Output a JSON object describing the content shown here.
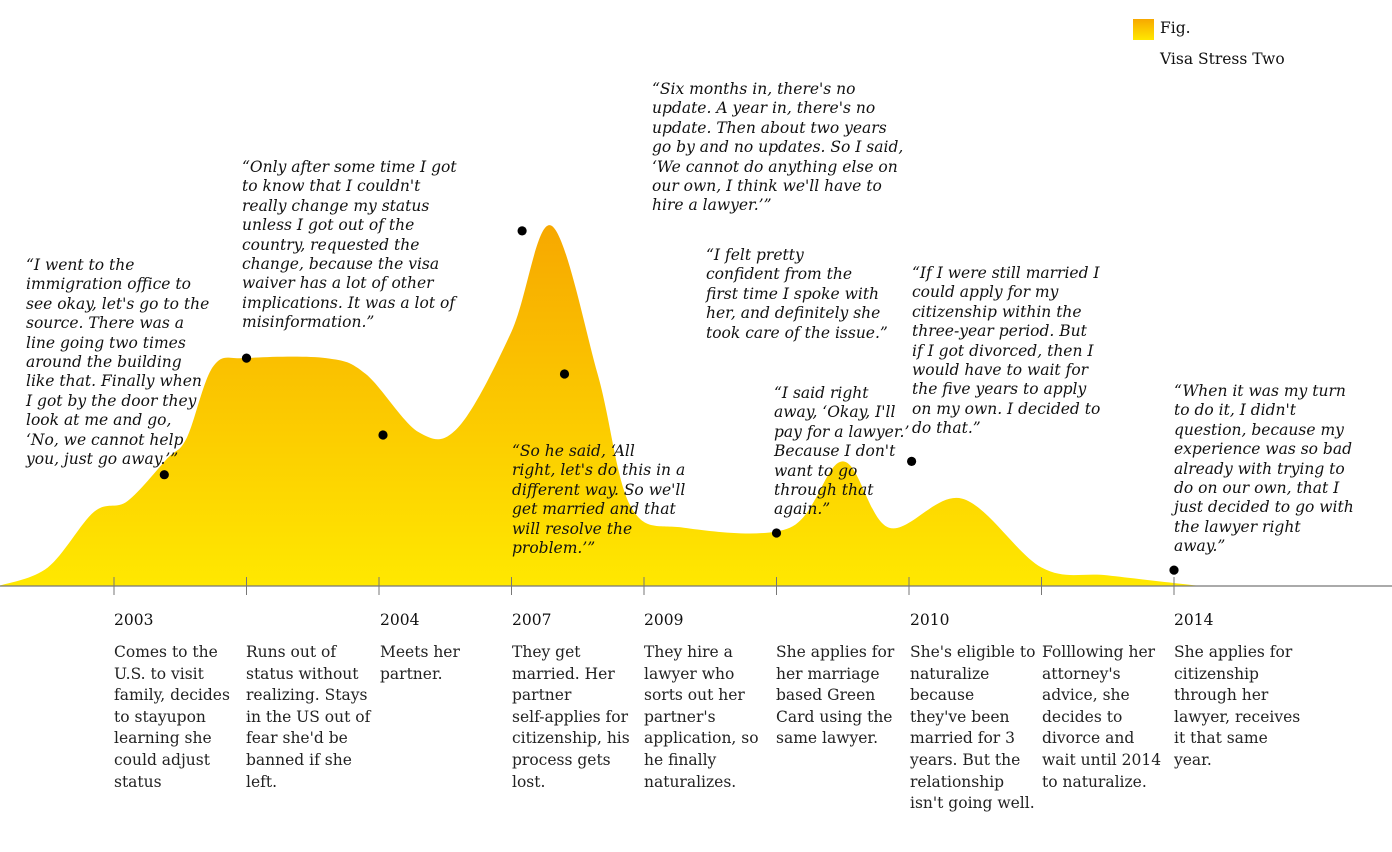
{
  "legend": {
    "fig_label": "Fig.",
    "title": "Visa Stress Two"
  },
  "colors": {
    "fill_top": "#f7a800",
    "fill_bottom": "#ffe800",
    "axis": "#777777",
    "point": "#000000"
  },
  "chart_data": {
    "type": "area",
    "title": "Visa Stress Two",
    "xlabel": "",
    "ylabel": "",
    "grid": false,
    "legend_placement": "top-right",
    "categories": [
      "2003",
      "",
      "2004",
      "2007",
      "2009",
      "",
      "2010",
      "",
      "2014"
    ],
    "descriptions": [
      "Comes to the\nU.S. to visit\nfamily, decides\nto stayupon\nlearning she\ncould adjust\nstatus",
      "Runs out of\nstatus without\nrealizing. Stays\nin the US out of\nfear she'd be\nbanned if she\nleft.",
      "Meets her\npartner.",
      "They get\nmarried. Her\npartner\nself-applies for\ncitizenship, his\nprocess gets\nlost.",
      "They hire a\nlawyer who\nsorts out her\npartner's\napplication, so\nhe finally\nnaturalizes.",
      "She applies for\nher marriage\nbased Green\nCard using the\nsame lawyer.",
      "She's eligible to\nnaturalize\nbecause\nthey've been\nmarried for 3\nyears. But the\nrelationship\nisn't going well.",
      "Folllowing her\nattorney's\nadvice, she\ndecides to\ndivorce and\nwait until 2014\nto naturalize.",
      "She applies  for\ncitizenship\nthrough her\nlawyer, receives\nit that same\nyear."
    ],
    "stress_curve": [
      [
        -0.87,
        0
      ],
      [
        -0.5,
        0.07
      ],
      [
        -0.15,
        0.28
      ],
      [
        0.1,
        0.32
      ],
      [
        0.4,
        0.48
      ],
      [
        0.55,
        0.56
      ],
      [
        0.75,
        0.83
      ],
      [
        1.0,
        0.86
      ],
      [
        1.6,
        0.86
      ],
      [
        1.9,
        0.8
      ],
      [
        2.3,
        0.58
      ],
      [
        2.6,
        0.6
      ],
      [
        3.0,
        0.96
      ],
      [
        3.3,
        1.36
      ],
      [
        3.65,
        0.8
      ],
      [
        3.9,
        0.3
      ],
      [
        4.3,
        0.22
      ],
      [
        5.1,
        0.22
      ],
      [
        5.5,
        0.47
      ],
      [
        5.85,
        0.22
      ],
      [
        6.4,
        0.33
      ],
      [
        7.0,
        0.07
      ],
      [
        7.5,
        0.04
      ],
      [
        8.2,
        0
      ]
    ],
    "quotes": [
      {
        "x": 0.38,
        "y": 0.42,
        "text": "“I went to the\nimmigration office to\nsee okay, let's go to the\nsource. There was a\nline going two times\naround the building\nlike that. Finally when\nI got by the door they\nlook at me and go,\n‘No, we cannot help\nyou, just go away.’”"
      },
      {
        "x": 1.0,
        "y": 0.86,
        "text": "“Only after some time I got\nto know that I couldn't\nreally change my status\nunless I got out of the\ncountry, requested the\nchange, because the visa\nwaiver has a lot of other\nimplications. It was a lot of\nmisinformation.”"
      },
      {
        "x": 2.03,
        "y": 0.57,
        "text": "“So he said, ‘All\nright, let's do this in a\ndifferent way. So we'll\nget married and that\nwill resolve the\nproblem.’”"
      },
      {
        "x": 3.08,
        "y": 1.34,
        "text": "“Six months in, there's no\nupdate. A year in, there's no\nupdate. Then about two years\ngo by and no updates. So I said,\n‘We cannot do anything else on\nour own, I think we'll have to\nhire a lawyer.’”"
      },
      {
        "x": 3.4,
        "y": 0.8,
        "text": "“I felt pretty\nconfident from the\nfirst time I spoke with\nher, and definitely she\ntook care of the issue.”"
      },
      {
        "x": 5.0,
        "y": 0.2,
        "text": "“I said right\naway, ‘Okay, I'll\npay for a lawyer.’\nBecause I don't\nwant to go\nthrough that\nagain.”"
      },
      {
        "x": 6.02,
        "y": 0.47,
        "text": "“If I were still married I\ncould apply for my\ncitizenship within the\nthree-year period. But\nif I got divorced, then I\nwould have to wait for\nthe five years to apply\non my own. I decided to\ndo that.”"
      },
      {
        "x": 8.0,
        "y": 0.06,
        "text": "“When it was my turn\nto do it, I didn't\nquestion, because my\nexperience was so bad\nalready with trying to\ndo on our own, that I\njust decided to go with\nthe lawyer right\naway.”"
      }
    ]
  }
}
